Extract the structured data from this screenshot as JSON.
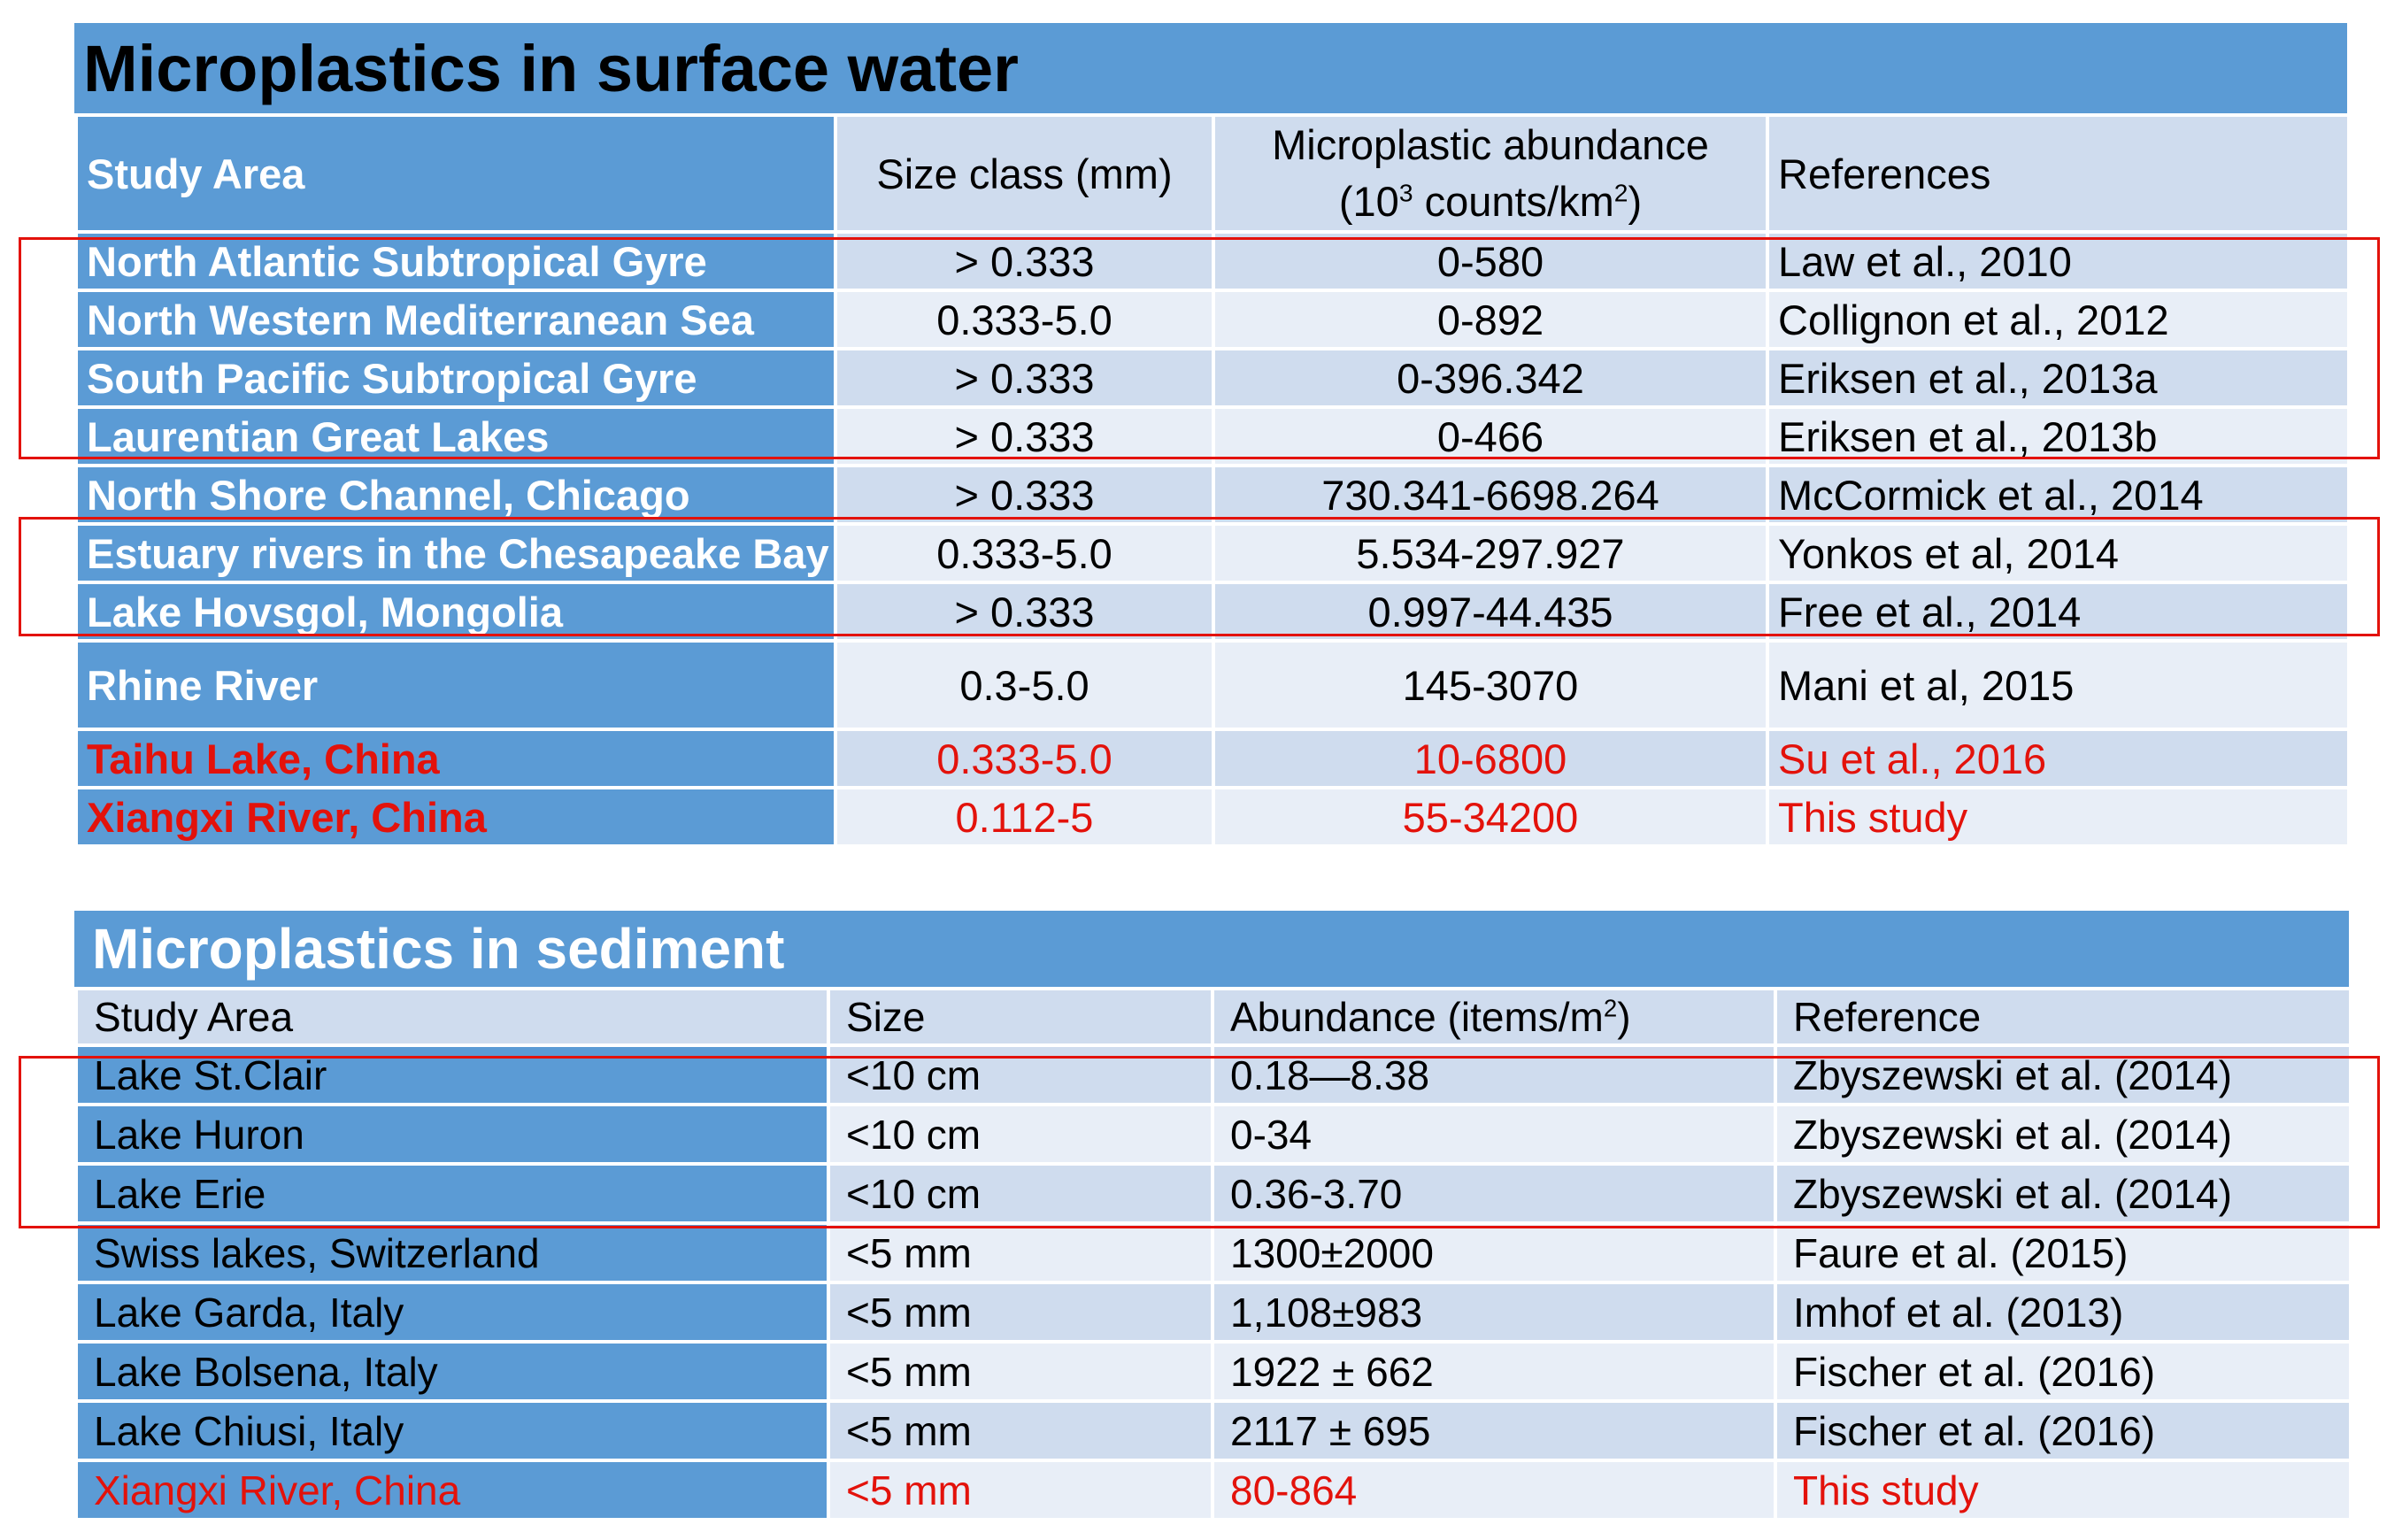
{
  "surface": {
    "title": "Microplastics in surface water",
    "headers": {
      "area": "Study Area",
      "size": "Size class (mm)",
      "abundance_line1": "Microplastic abundance",
      "abundance_pre": "(10",
      "abundance_sup1": "3",
      "abundance_mid": " counts/km",
      "abundance_sup2": "2",
      "abundance_post": ")",
      "ref": "References"
    },
    "rows": [
      {
        "area": "North Atlantic Subtropical Gyre",
        "size": "> 0.333",
        "abundance": "0-580",
        "ref": "Law et al., 2010"
      },
      {
        "area": "North Western Mediterranean Sea",
        "size": "0.333-5.0",
        "abundance": "0-892",
        "ref": "Collignon et al., 2012"
      },
      {
        "area": "South Pacific Subtropical Gyre",
        "size": "> 0.333",
        "abundance": "0-396.342",
        "ref": "Eriksen et al., 2013a"
      },
      {
        "area": "Laurentian Great Lakes",
        "size": "> 0.333",
        "abundance": "0-466",
        "ref": "Eriksen et al., 2013b"
      },
      {
        "area": "North Shore Channel, Chicago",
        "size": "> 0.333",
        "abundance": "730.341-6698.264",
        "ref": "McCormick et al., 2014"
      },
      {
        "area": "Estuary rivers in the Chesapeake Bay",
        "size": "0.333-5.0",
        "abundance": "5.534-297.927",
        "ref": "Yonkos et al, 2014"
      },
      {
        "area": "Lake Hovsgol, Mongolia",
        "size": "> 0.333",
        "abundance": "0.997-44.435",
        "ref": "Free et al., 2014"
      },
      {
        "area": "Rhine River",
        "size": "0.3-5.0",
        "abundance": "145-3070",
        "ref": "Mani et al, 2015"
      },
      {
        "area": "Taihu Lake, China",
        "size": "0.333-5.0",
        "abundance": "10-6800",
        "ref": "Su et al., 2016"
      },
      {
        "area": "Xiangxi River, China",
        "size": "0.112-5",
        "abundance": "55-34200",
        "ref": "This study"
      }
    ]
  },
  "sediment": {
    "title": "Microplastics in sediment",
    "headers": {
      "area": "Study Area",
      "size": "Size",
      "abundance_pre": "Abundance (items/m",
      "abundance_sup": "2",
      "abundance_post": ")",
      "ref": "Reference"
    },
    "rows": [
      {
        "area": "Lake St.Clair",
        "size": "<10 cm",
        "abundance": "0.18—8.38",
        "ref": "Zbyszewski et al. (2014)"
      },
      {
        "area": "Lake Huron",
        "size": "<10 cm",
        "abundance": "0-34",
        "ref": "Zbyszewski et al. (2014)"
      },
      {
        "area": "Lake Erie",
        "size": "<10 cm",
        "abundance": "0.36-3.70",
        "ref": "Zbyszewski et al. (2014)"
      },
      {
        "area": "Swiss lakes, Switzerland",
        "size": "<5 mm",
        "abundance": "1300±2000",
        "ref": "Faure et al. (2015)"
      },
      {
        "area": "Lake Garda, Italy",
        "size": "<5 mm",
        "abundance": "1,108±983",
        "ref": "Imhof et al. (2013)"
      },
      {
        "area": "Lake Bolsena, Italy",
        "size": "<5 mm",
        "abundance": "1922 ± 662",
        "ref": "Fischer et al. (2016)"
      },
      {
        "area": "Lake Chiusi, Italy",
        "size": "<5 mm",
        "abundance": "2117 ± 695",
        "ref": "Fischer et al. (2016)"
      },
      {
        "area": "Xiangxi River, China",
        "size": "<5 mm",
        "abundance": "80-864",
        "ref": "This study"
      }
    ]
  },
  "colors": {
    "header_blue": "#5b9bd5",
    "cell_light": "#cfdcee",
    "cell_lighter": "#e8eef7",
    "highlight_red": "#e3120b"
  }
}
